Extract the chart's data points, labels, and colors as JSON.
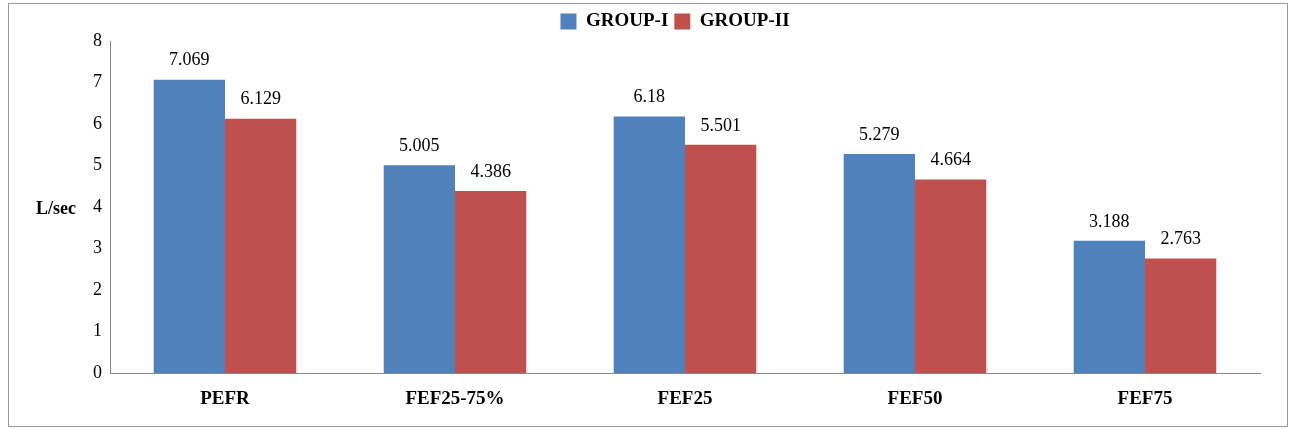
{
  "chart_data": {
    "type": "bar",
    "ylabel": "L/sec",
    "categories": [
      "PEFR",
      "FEF25-75%",
      "FEF25",
      "FEF50",
      "FEF75"
    ],
    "series": [
      {
        "name": "GROUP-I",
        "color": "#4f81bd",
        "values": [
          7.069,
          5.005,
          6.18,
          5.279,
          3.188
        ]
      },
      {
        "name": "GROUP-II",
        "color": "#c0504d",
        "values": [
          6.129,
          4.386,
          5.501,
          4.664,
          2.763
        ]
      }
    ],
    "ylim": [
      0,
      8
    ],
    "yticks": [
      0,
      1,
      2,
      3,
      4,
      5,
      6,
      7,
      8
    ],
    "grid": false,
    "legend": "top",
    "data_labels": true
  }
}
